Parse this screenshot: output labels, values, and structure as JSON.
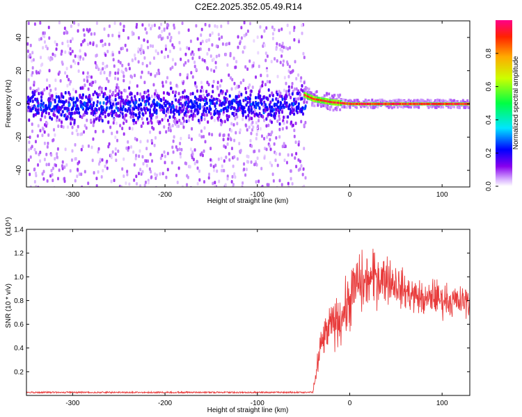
{
  "title": "C2E2.2025.352.05.49.R14",
  "chart_data": [
    {
      "type": "heatmap",
      "xlabel": "Height of straight line (km)",
      "ylabel": "Frequency (Hz)",
      "xlim": [
        -350,
        130
      ],
      "ylim": [
        -50,
        50
      ],
      "xticks": [
        -300,
        -200,
        -100,
        0,
        100
      ],
      "yticks": [
        -40,
        -20,
        0,
        20,
        40
      ],
      "colorbar": {
        "label": "Normalized spectral amplitude",
        "range": [
          0.0,
          1.0
        ],
        "ticks": [
          0.0,
          0.2,
          0.4,
          0.6,
          0.8
        ]
      },
      "regions": [
        {
          "x_range": [
            -350,
            -50
          ],
          "description": "broadband noise, dense band within about ±12 Hz, sparse scatter to ±50 Hz",
          "amplitude_range": [
            0.0,
            0.3
          ]
        },
        {
          "x_range": [
            -50,
            130
          ],
          "description": "narrow band converging to ~0 Hz",
          "center_frequency": [
            [
              -48,
              5
            ],
            [
              -40,
              3
            ],
            [
              -20,
              1
            ],
            [
              0,
              0
            ],
            [
              130,
              0
            ]
          ],
          "amplitude_range": [
            0.6,
            1.0
          ]
        }
      ]
    },
    {
      "type": "line",
      "xlabel": "Height of straight line (km)",
      "ylabel": "SNR (10 * v/v)",
      "y_multiplier": "(x10⁴)",
      "xlim": [
        -350,
        130
      ],
      "ylim": [
        0,
        1.4
      ],
      "xticks": [
        -300,
        -200,
        -100,
        0,
        100
      ],
      "yticks": [
        0.2,
        0.4,
        0.6,
        0.8,
        1.0,
        1.2,
        1.4
      ],
      "color": "#e83a3a",
      "series": [
        {
          "x": [
            -350,
            -40,
            -35,
            -30,
            -25,
            -20,
            -15,
            -10,
            -5,
            0,
            5,
            10,
            15,
            20,
            25,
            30,
            35,
            40,
            45,
            50,
            55,
            60,
            65,
            70,
            75,
            80,
            85,
            90,
            95,
            100,
            105,
            110,
            115,
            120,
            125,
            130
          ],
          "values": [
            0.02,
            0.02,
            0.25,
            0.45,
            0.52,
            0.6,
            0.62,
            0.65,
            0.72,
            0.8,
            0.9,
            0.95,
            0.92,
            0.98,
            0.97,
            1.02,
            0.98,
            1.0,
            0.96,
            0.95,
            0.9,
            0.88,
            0.86,
            0.84,
            0.83,
            0.8,
            0.8,
            0.85,
            0.82,
            0.8,
            0.82,
            0.78,
            0.8,
            0.78,
            0.8,
            0.78
          ],
          "noise": [
            0.01,
            0.01,
            0.12,
            0.15,
            0.15,
            0.15,
            0.18,
            0.2,
            0.2,
            0.22,
            0.25,
            0.25,
            0.22,
            0.2,
            0.22,
            0.22,
            0.2,
            0.18,
            0.18,
            0.15,
            0.15,
            0.14,
            0.14,
            0.13,
            0.13,
            0.13,
            0.12,
            0.14,
            0.13,
            0.12,
            0.12,
            0.12,
            0.12,
            0.12,
            0.12,
            0.12
          ]
        }
      ]
    }
  ]
}
